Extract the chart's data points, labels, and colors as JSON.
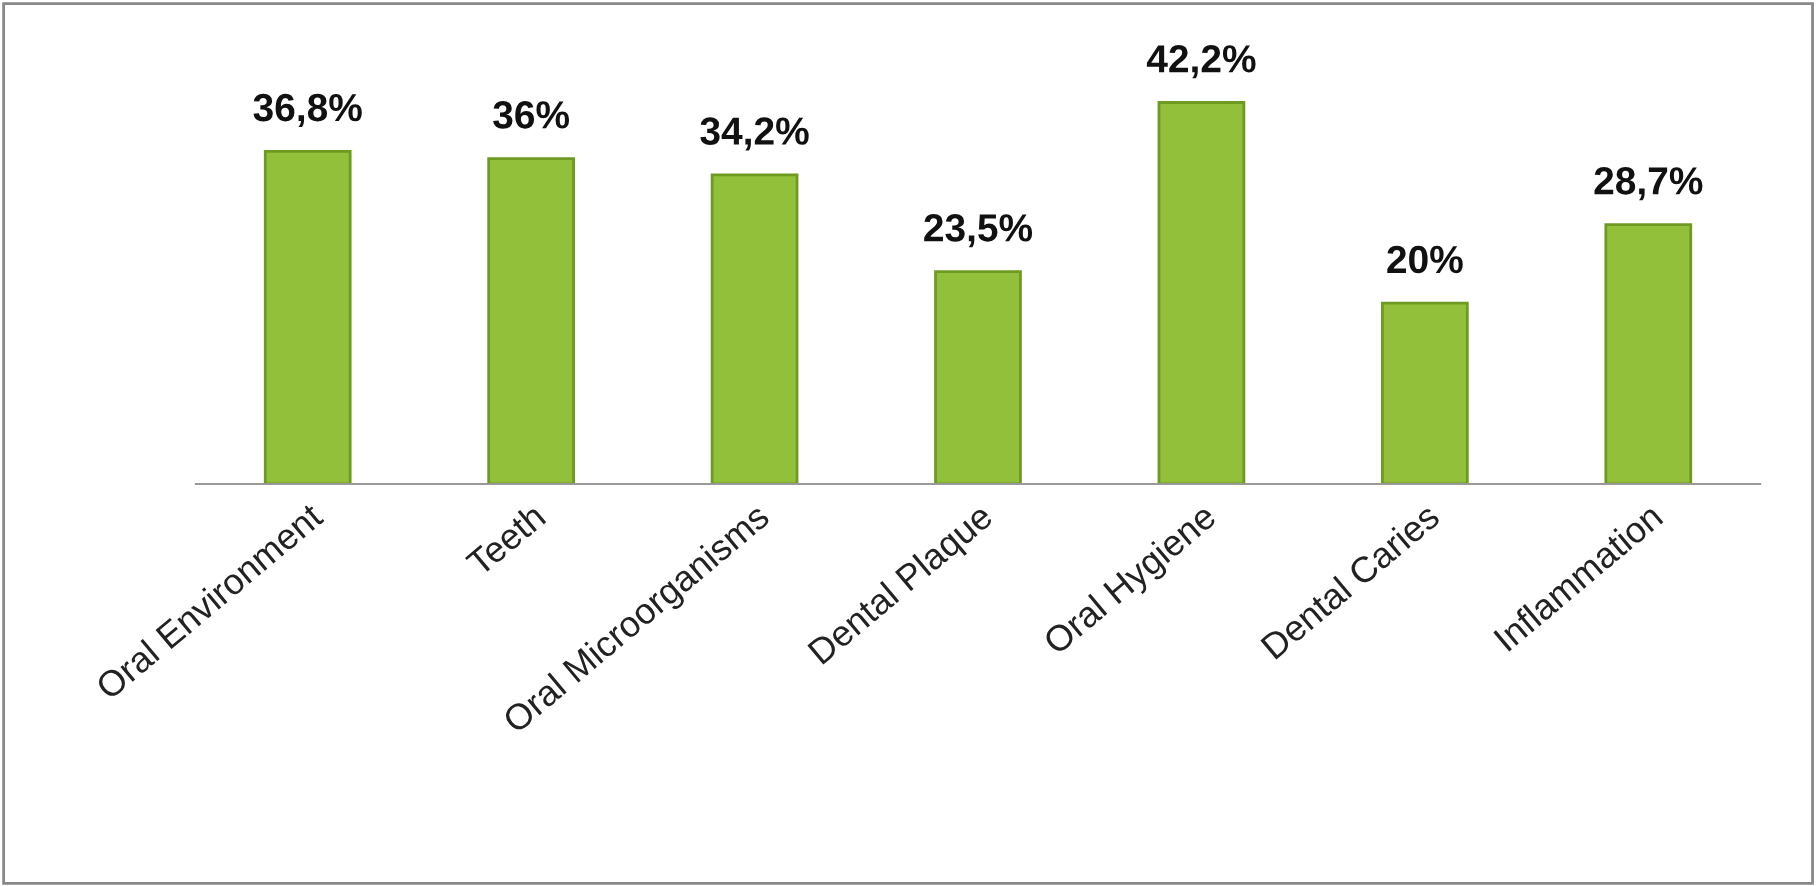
{
  "chart_data": {
    "type": "bar",
    "categories": [
      "Oral Environment",
      "Teeth",
      "Oral Microorganisms",
      "Dental Plaque",
      "Oral Hygiene",
      "Dental Caries",
      "Inflammation"
    ],
    "values": [
      36.8,
      36,
      34.2,
      23.5,
      42.2,
      20,
      28.7
    ],
    "value_labels": [
      "36,8%",
      "36%",
      "34,2%",
      "23,5%",
      "42,2%",
      "20%",
      "28,7%"
    ],
    "color": "#92c03a",
    "grid": false,
    "legend": false,
    "tick_labels": "x"
  }
}
